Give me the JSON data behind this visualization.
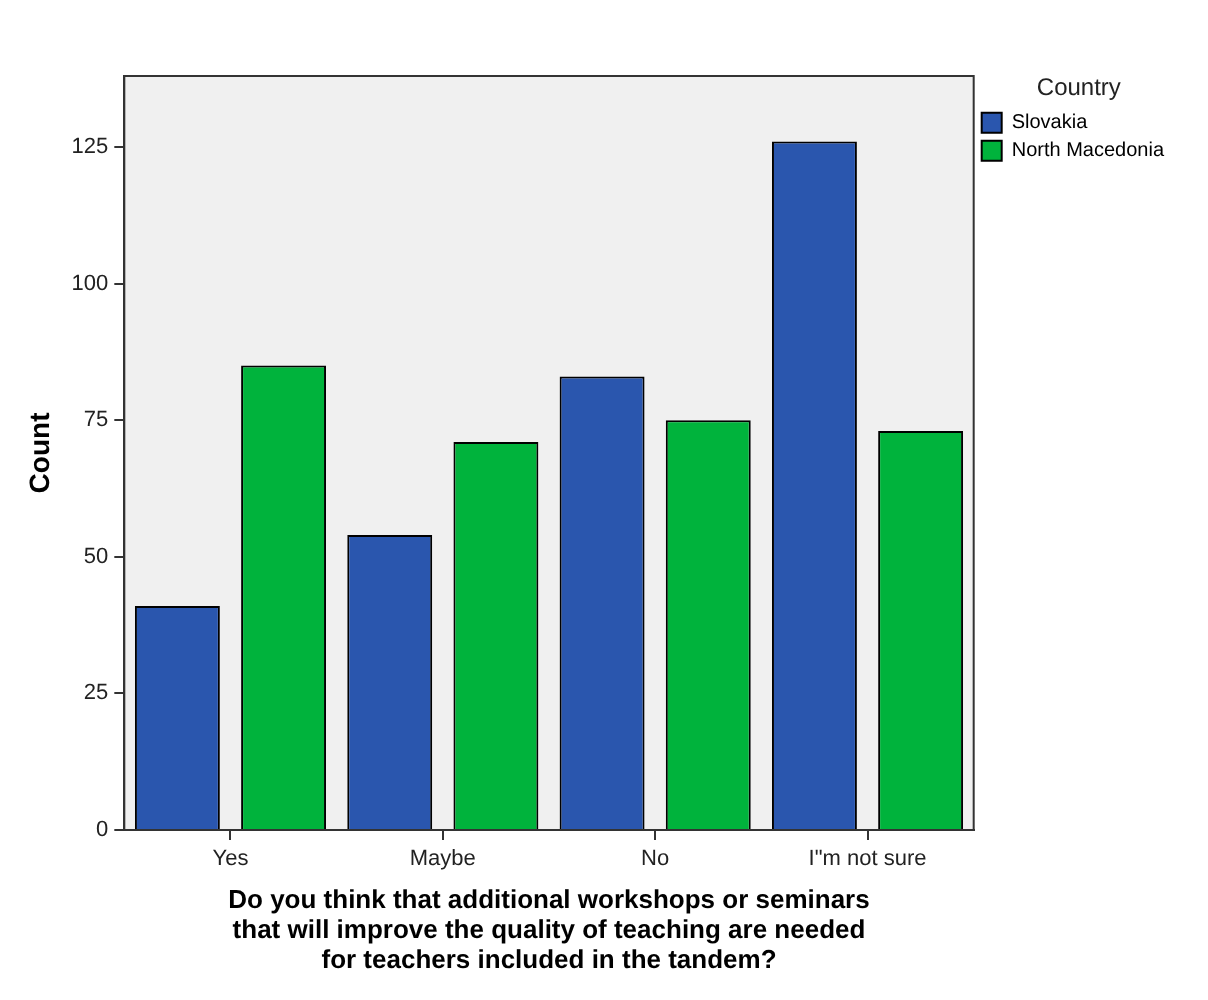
{
  "chart_data": {
    "type": "bar",
    "xlabel": "Do you think that additional workshops or seminars that will improve the quality of teaching are needed for teachers included in the tandem?",
    "ylabel": "Count",
    "legend_title": "Country",
    "categories": [
      "Yes",
      "Maybe",
      "No",
      "I\"m not sure"
    ],
    "series": [
      {
        "name": "Slovakia",
        "color": "#2a56ae",
        "values": [
          41,
          54,
          83,
          126
        ]
      },
      {
        "name": "North Macedonia",
        "color": "#00b33c",
        "values": [
          85,
          71,
          75,
          73
        ]
      }
    ],
    "ylim": [
      0,
      138
    ],
    "yticks": [
      0,
      25,
      50,
      75,
      100,
      125
    ],
    "grid": false,
    "legend": "right"
  }
}
